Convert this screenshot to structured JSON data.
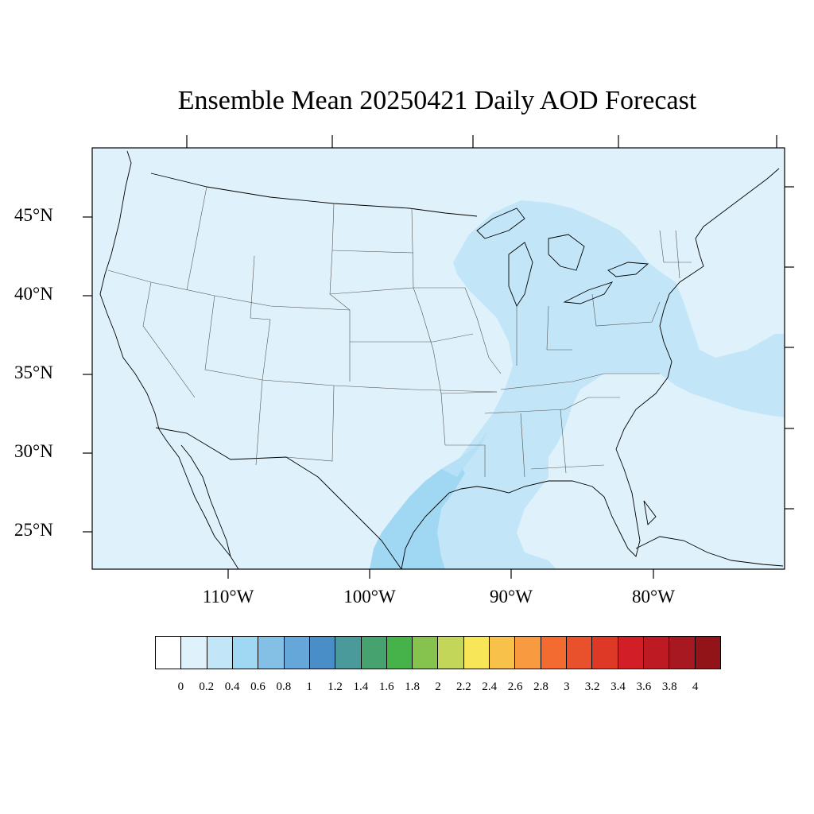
{
  "title": "Ensemble Mean 20250421 Daily AOD Forecast",
  "lat_labels": [
    "45°N",
    "40°N",
    "35°N",
    "30°N",
    "25°N"
  ],
  "lon_labels": [
    "110°W",
    "100°W",
    "90°W",
    "80°W"
  ],
  "colorbar": {
    "labels": [
      "0",
      "0.2",
      "0.4",
      "0.6",
      "0.8",
      "1",
      "1.2",
      "1.4",
      "1.6",
      "1.8",
      "2",
      "2.2",
      "2.4",
      "2.6",
      "2.8",
      "3",
      "3.2",
      "3.4",
      "3.6",
      "3.8",
      "4"
    ],
    "colors": [
      "#ffffff",
      "#dff2fb",
      "#c2e6f7",
      "#a0d7f3",
      "#84bfe6",
      "#66a7da",
      "#4a8ec8",
      "#4a9a9b",
      "#46a36f",
      "#46b34a",
      "#86c34e",
      "#c4d65a",
      "#f7e658",
      "#f8c24a",
      "#f79a40",
      "#f46b32",
      "#e9512c",
      "#de3927",
      "#d21f27",
      "#bd1a23",
      "#a81820",
      "#921418"
    ]
  },
  "map": {
    "extent": {
      "lon_min": -119,
      "lon_max": -70,
      "lat_min": 22.5,
      "lat_max": 49.5
    },
    "background_color": "#dff2fb",
    "enhanced_region_color": "#c2e6f7",
    "peak_region_color": "#a0d7f3"
  }
}
